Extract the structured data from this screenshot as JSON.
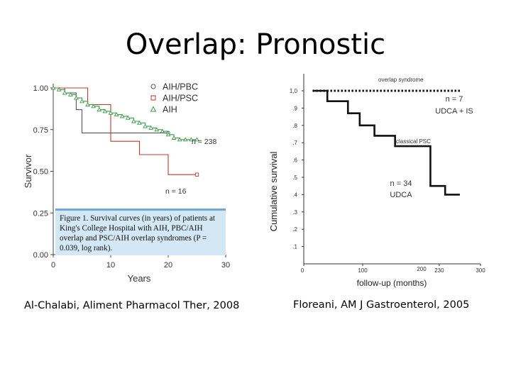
{
  "slide": {
    "title": "Overlap: Pronostic",
    "left_citation": "Al-Chalabi,  Aliment Pharmacol Ther, 2008",
    "right_citation": "Floreani, AM J Gastroenterol, 2005"
  },
  "left_panel": {
    "caption": "Figure 1. Survival curves (in years) of patients at King's College Hospital with AIH, PBC/AIH overlap and PSC/AIH overlap syndromes (P = 0.039, log rank).",
    "annotations": [
      "n = 238",
      "n = 16"
    ]
  },
  "right_panel": {
    "annotations": {
      "top_n": "n = 7",
      "top_group": "UDCA + IS",
      "mid_n": "n = 34",
      "mid_group": "UDCA"
    },
    "curve_labels": [
      "overlap syndrome",
      "classical PSC"
    ]
  },
  "chart_data": [
    {
      "type": "line",
      "xlabel": "Years",
      "ylabel": "Survivor",
      "xlim": [
        0,
        30
      ],
      "ylim": [
        0,
        1
      ],
      "x_ticks": [
        "0",
        "10",
        "20",
        "30"
      ],
      "y_ticks": [
        "0.00",
        "0.25",
        "0.50",
        "0.75",
        "1.00"
      ],
      "legend_position": "top-right",
      "series": [
        {
          "name": "AIH/PBC",
          "color": "#555555",
          "marker": "circle",
          "x": [
            0,
            2,
            2,
            4,
            4,
            5,
            5,
            20
          ],
          "y": [
            1.0,
            1.0,
            0.97,
            0.97,
            0.87,
            0.87,
            0.73,
            0.73
          ]
        },
        {
          "name": "AIH/PSC",
          "color": "#c0392b",
          "marker": "square",
          "x": [
            0,
            6,
            6,
            10,
            10,
            15,
            15,
            20,
            20,
            25
          ],
          "y": [
            1.0,
            1.0,
            0.9,
            0.9,
            0.68,
            0.68,
            0.6,
            0.6,
            0.48,
            0.48
          ]
        },
        {
          "name": "AIH",
          "color": "#3a9a48",
          "marker": "triangle",
          "x": [
            0,
            1,
            2,
            3,
            4,
            5,
            6,
            7,
            8,
            9,
            10,
            11,
            12,
            13,
            14,
            15,
            16,
            17,
            18,
            19,
            20,
            21,
            22,
            23,
            24,
            25
          ],
          "y": [
            1.0,
            0.99,
            0.97,
            0.96,
            0.94,
            0.92,
            0.9,
            0.89,
            0.87,
            0.86,
            0.85,
            0.84,
            0.83,
            0.82,
            0.8,
            0.79,
            0.77,
            0.76,
            0.75,
            0.74,
            0.72,
            0.7,
            0.69,
            0.69,
            0.69,
            0.69
          ]
        }
      ]
    },
    {
      "type": "line",
      "xlabel": "follow-up (months)",
      "ylabel": "Cumulative survival",
      "xlim": [
        0,
        300
      ],
      "ylim": [
        0,
        1
      ],
      "x_ticks": [
        "0",
        "100",
        "200",
        "230",
        "300"
      ],
      "y_ticks": [
        ".1",
        ".2",
        ".3",
        ".4",
        ".5",
        ".6",
        ".7",
        ".8",
        ".9",
        "1,0"
      ],
      "series": [
        {
          "name": "overlap syndrome",
          "style": "dotted",
          "x": [
            15,
            265
          ],
          "y": [
            1.0,
            1.0
          ]
        },
        {
          "name": "classical PSC",
          "style": "solid",
          "x": [
            15,
            40,
            40,
            75,
            75,
            95,
            95,
            120,
            120,
            155,
            155,
            215,
            215,
            240,
            240,
            265
          ],
          "y": [
            1.0,
            1.0,
            0.94,
            0.94,
            0.87,
            0.87,
            0.8,
            0.8,
            0.74,
            0.74,
            0.68,
            0.68,
            0.45,
            0.45,
            0.4,
            0.4
          ]
        }
      ]
    }
  ]
}
